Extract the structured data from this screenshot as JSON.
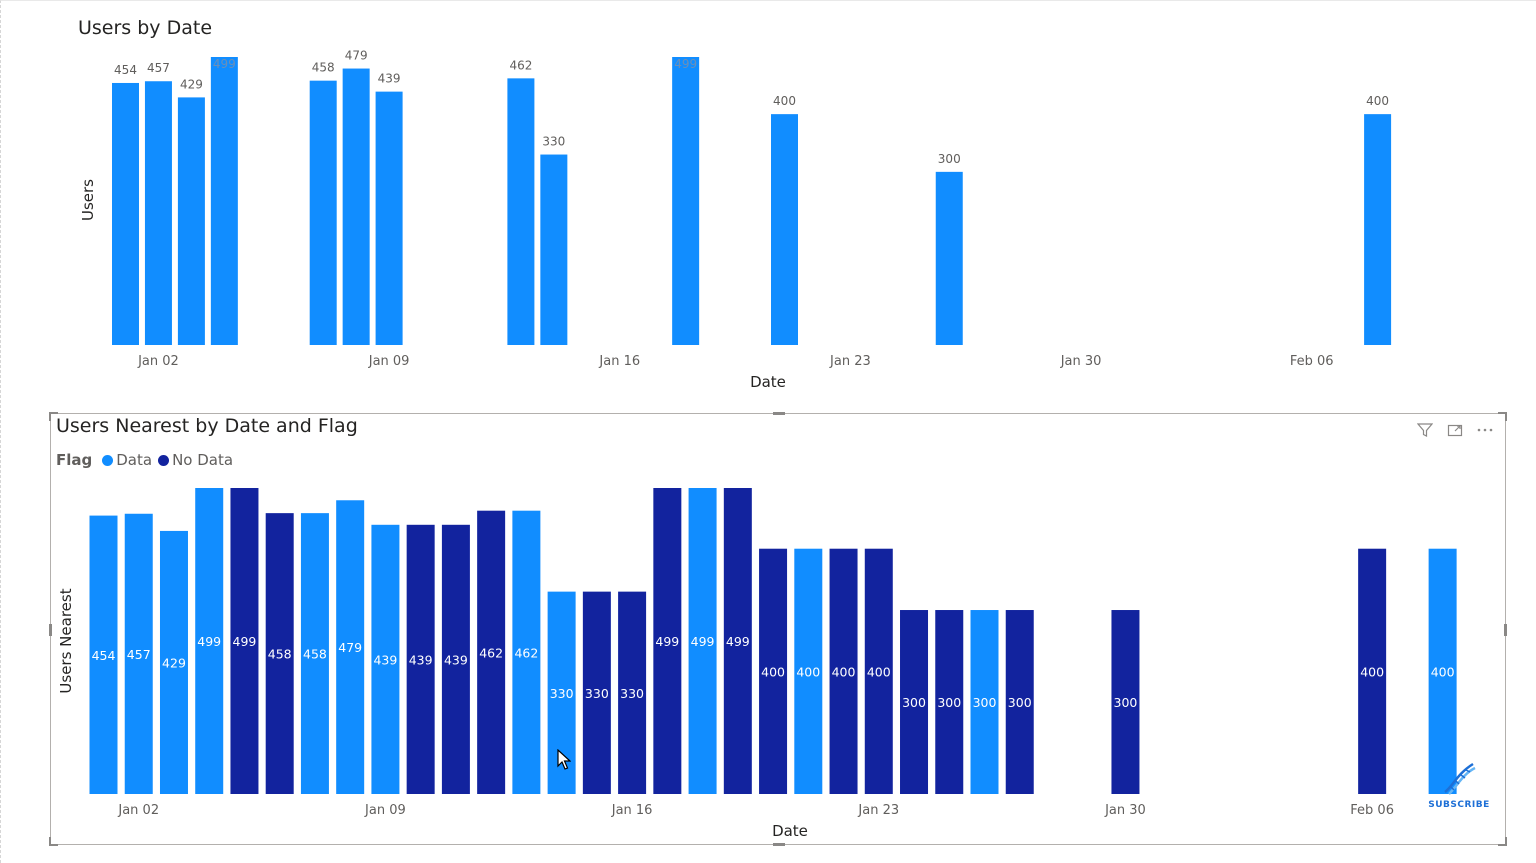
{
  "colors": {
    "data": "#118DFF",
    "no_data": "#12239E",
    "text": "#252423",
    "axis_text": "#605e5c",
    "label_dark": "#605e5c",
    "label_light": "#ffffff"
  },
  "header_icons": [
    "filter-icon",
    "focus-mode-icon",
    "more-options-icon"
  ],
  "subscribe": {
    "label": "SUBSCRIBE",
    "icon": "dna-icon"
  },
  "chart_data": [
    {
      "type": "bar",
      "title": "Users by Date",
      "xlabel": "Date",
      "ylabel": "Users",
      "x_tick_labels": [
        "Jan 02",
        "Jan 09",
        "Jan 16",
        "Jan 23",
        "Jan 30",
        "Feb 06"
      ],
      "ylim": [
        0,
        510
      ],
      "grid": false,
      "bars": [
        {
          "date": "Jan 02",
          "value": 454,
          "label": "454"
        },
        {
          "date": "Jan 03",
          "value": 457,
          "label": "457"
        },
        {
          "date": "Jan 04",
          "value": 429,
          "label": "429"
        },
        {
          "date": "Jan 05",
          "value": 499,
          "label": "499"
        },
        {
          "date": "Jan 08",
          "value": 458,
          "label": "458"
        },
        {
          "date": "Jan 09",
          "value": 479,
          "label": "479"
        },
        {
          "date": "Jan 10",
          "value": 439,
          "label": "439"
        },
        {
          "date": "Jan 14",
          "value": 462,
          "label": "462"
        },
        {
          "date": "Jan 15",
          "value": 330,
          "label": "330"
        },
        {
          "date": "Jan 19",
          "value": 499,
          "label": "499"
        },
        {
          "date": "Jan 22",
          "value": 400,
          "label": "400"
        },
        {
          "date": "Jan 27",
          "value": 300,
          "label": "300"
        },
        {
          "date": "Feb 09",
          "value": 400,
          "label": "400"
        }
      ]
    },
    {
      "type": "bar",
      "title": "Users Nearest by Date and Flag",
      "xlabel": "Date",
      "ylabel": "Users Nearest",
      "legend": {
        "title": "Flag",
        "position": "top-left",
        "entries": [
          "Data",
          "No Data"
        ]
      },
      "x_tick_labels": [
        "Jan 02",
        "Jan 09",
        "Jan 16",
        "Jan 23",
        "Jan 30",
        "Feb 06"
      ],
      "ylim": [
        0,
        510
      ],
      "grid": false,
      "bars": [
        {
          "date": "Jan 02",
          "value": 454,
          "flag": "Data",
          "label": "454"
        },
        {
          "date": "Jan 03",
          "value": 457,
          "flag": "Data",
          "label": "457"
        },
        {
          "date": "Jan 04",
          "value": 429,
          "flag": "Data",
          "label": "429"
        },
        {
          "date": "Jan 05",
          "value": 499,
          "flag": "Data",
          "label": "499"
        },
        {
          "date": "Jan 06",
          "value": 499,
          "flag": "No Data",
          "label": "499"
        },
        {
          "date": "Jan 07",
          "value": 458,
          "flag": "No Data",
          "label": "458"
        },
        {
          "date": "Jan 08",
          "value": 458,
          "flag": "Data",
          "label": "458"
        },
        {
          "date": "Jan 09",
          "value": 479,
          "flag": "Data",
          "label": "479"
        },
        {
          "date": "Jan 10",
          "value": 439,
          "flag": "Data",
          "label": "439"
        },
        {
          "date": "Jan 11",
          "value": 439,
          "flag": "No Data",
          "label": "439"
        },
        {
          "date": "Jan 12",
          "value": 439,
          "flag": "No Data",
          "label": "439"
        },
        {
          "date": "Jan 13",
          "value": 462,
          "flag": "No Data",
          "label": "462"
        },
        {
          "date": "Jan 14",
          "value": 462,
          "flag": "Data",
          "label": "462"
        },
        {
          "date": "Jan 15",
          "value": 330,
          "flag": "Data",
          "label": "330"
        },
        {
          "date": "Jan 16",
          "value": 330,
          "flag": "No Data",
          "label": "330"
        },
        {
          "date": "Jan 17",
          "value": 330,
          "flag": "No Data",
          "label": "330"
        },
        {
          "date": "Jan 18",
          "value": 499,
          "flag": "No Data",
          "label": "499"
        },
        {
          "date": "Jan 19",
          "value": 499,
          "flag": "Data",
          "label": "499"
        },
        {
          "date": "Jan 20",
          "value": 499,
          "flag": "No Data",
          "label": "499"
        },
        {
          "date": "Jan 21",
          "value": 400,
          "flag": "No Data",
          "label": "400"
        },
        {
          "date": "Jan 22",
          "value": 400,
          "flag": "Data",
          "label": "400"
        },
        {
          "date": "Jan 23",
          "value": 400,
          "flag": "No Data",
          "label": "400"
        },
        {
          "date": "Jan 24",
          "value": 400,
          "flag": "No Data",
          "label": "400"
        },
        {
          "date": "Jan 25",
          "value": 300,
          "flag": "No Data",
          "label": "300"
        },
        {
          "date": "Jan 26",
          "value": 300,
          "flag": "No Data",
          "label": "300"
        },
        {
          "date": "Jan 27",
          "value": 300,
          "flag": "Data",
          "label": "300"
        },
        {
          "date": "Jan 28",
          "value": 300,
          "flag": "No Data",
          "label": "300"
        },
        {
          "date": "Jan 31",
          "value": 300,
          "flag": "No Data",
          "label": "300"
        },
        {
          "date": "Feb 07",
          "value": 400,
          "flag": "No Data",
          "label": "400"
        },
        {
          "date": "Feb 09",
          "value": 400,
          "flag": "Data",
          "label": "400"
        }
      ]
    }
  ]
}
